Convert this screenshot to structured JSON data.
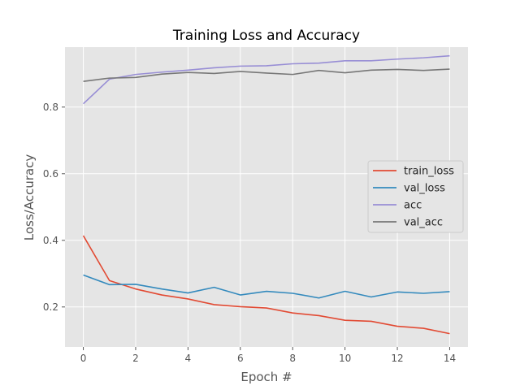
{
  "chart_data": {
    "type": "line",
    "title": "Training Loss and Accuracy",
    "xlabel": "Epoch #",
    "ylabel": "Loss/Accuracy",
    "xlim": [
      -0.7,
      14.7
    ],
    "ylim": [
      0.08,
      0.98
    ],
    "xticks": [
      0,
      2,
      4,
      6,
      8,
      10,
      12,
      14
    ],
    "yticks": [
      0.2,
      0.4,
      0.6,
      0.8
    ],
    "ytick_labels": [
      "0.2",
      "0.4",
      "0.6",
      "0.8"
    ],
    "grid": true,
    "legend_position": "center-right",
    "x": [
      0,
      1,
      2,
      3,
      4,
      5,
      6,
      7,
      8,
      9,
      10,
      11,
      12,
      13,
      14
    ],
    "series": [
      {
        "name": "train_loss",
        "color": "#E24A33",
        "values": [
          0.414,
          0.279,
          0.254,
          0.236,
          0.224,
          0.207,
          0.201,
          0.197,
          0.182,
          0.174,
          0.16,
          0.157,
          0.142,
          0.136,
          0.12
        ]
      },
      {
        "name": "val_loss",
        "color": "#348ABD",
        "values": [
          0.296,
          0.267,
          0.268,
          0.254,
          0.242,
          0.259,
          0.236,
          0.247,
          0.241,
          0.227,
          0.247,
          0.23,
          0.245,
          0.241,
          0.246
        ]
      },
      {
        "name": "acc",
        "color": "#988ED5",
        "values": [
          0.81,
          0.884,
          0.898,
          0.905,
          0.911,
          0.918,
          0.923,
          0.924,
          0.93,
          0.932,
          0.939,
          0.939,
          0.944,
          0.948,
          0.954
        ]
      },
      {
        "name": "val_acc",
        "color": "#777777",
        "values": [
          0.877,
          0.887,
          0.889,
          0.899,
          0.904,
          0.901,
          0.907,
          0.902,
          0.898,
          0.91,
          0.903,
          0.911,
          0.913,
          0.91,
          0.914
        ]
      }
    ]
  }
}
